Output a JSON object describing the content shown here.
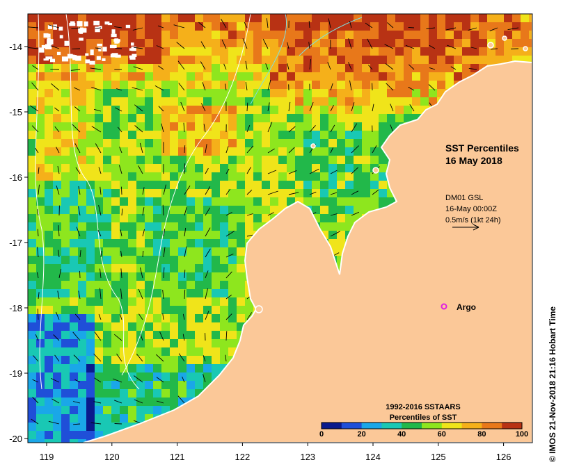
{
  "map": {
    "title_line1": "SST Percentiles",
    "title_line2": "16 May 2018",
    "current_info": {
      "line1": "DM01 GSL",
      "line2": "16-May 00:00Z",
      "line3": "0.5m/s (1kt 24h)"
    },
    "argo_label": "Argo",
    "credit": "© IMOS 21-Nov-2018 21:16 Hobart Time",
    "legend": {
      "title_line1": "1992-2016 SSTAARS",
      "title_line2": "Percentiles of SST",
      "ticks": [
        "0",
        "20",
        "40",
        "60",
        "80",
        "100"
      ],
      "colors": [
        "#0a1a8c",
        "#1f4fd8",
        "#1aa7e8",
        "#19c8b4",
        "#22b84a",
        "#8ee61e",
        "#f0e41a",
        "#f5b01a",
        "#e8781a",
        "#b83214"
      ]
    },
    "lon_ticks": [
      "119",
      "120",
      "121",
      "122",
      "123",
      "124",
      "125",
      "126"
    ],
    "lat_ticks": [
      "-14",
      "-15",
      "-16",
      "-17",
      "-18",
      "-19",
      "-20"
    ],
    "land_color": "#fbc898"
  }
}
